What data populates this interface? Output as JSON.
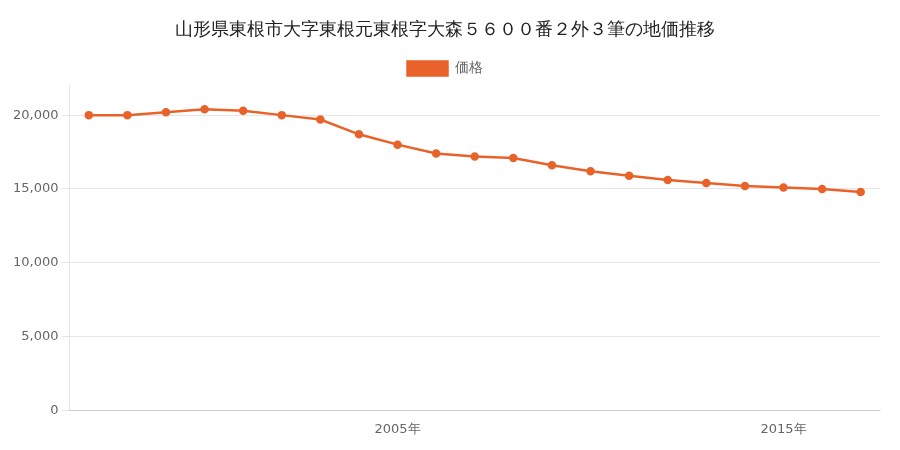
{
  "chart_data": {
    "type": "line",
    "title": "山形県東根市大字東根元東根字大森５６００番２外３筆の地価推移",
    "x": [
      1997,
      1998,
      1999,
      2000,
      2001,
      2002,
      2003,
      2004,
      2005,
      2006,
      2007,
      2008,
      2009,
      2010,
      2011,
      2012,
      2013,
      2014,
      2015,
      2016,
      2017
    ],
    "series": [
      {
        "name": "価格",
        "color": "#e8622a",
        "values": [
          20000,
          20000,
          20200,
          20400,
          20300,
          20000,
          19700,
          18700,
          18000,
          17400,
          17200,
          17100,
          16600,
          16200,
          15900,
          15600,
          15400,
          15200,
          15100,
          15000,
          14800
        ]
      }
    ],
    "marker": "circle",
    "xlim": [
      1996.5,
      2017.5
    ],
    "xticks": [
      {
        "value": 2005,
        "label": "2005年"
      },
      {
        "value": 2015,
        "label": "2015年"
      }
    ],
    "ylim": [
      0,
      22000
    ],
    "yticks": [
      0,
      {
        "value": 5000,
        "label": "5,000"
      },
      {
        "value": 10000,
        "label": "10,000"
      },
      {
        "value": 15000,
        "label": "15,000"
      },
      {
        "value": 20000,
        "label": "20,000"
      }
    ],
    "grid": "y",
    "legend": "top"
  }
}
